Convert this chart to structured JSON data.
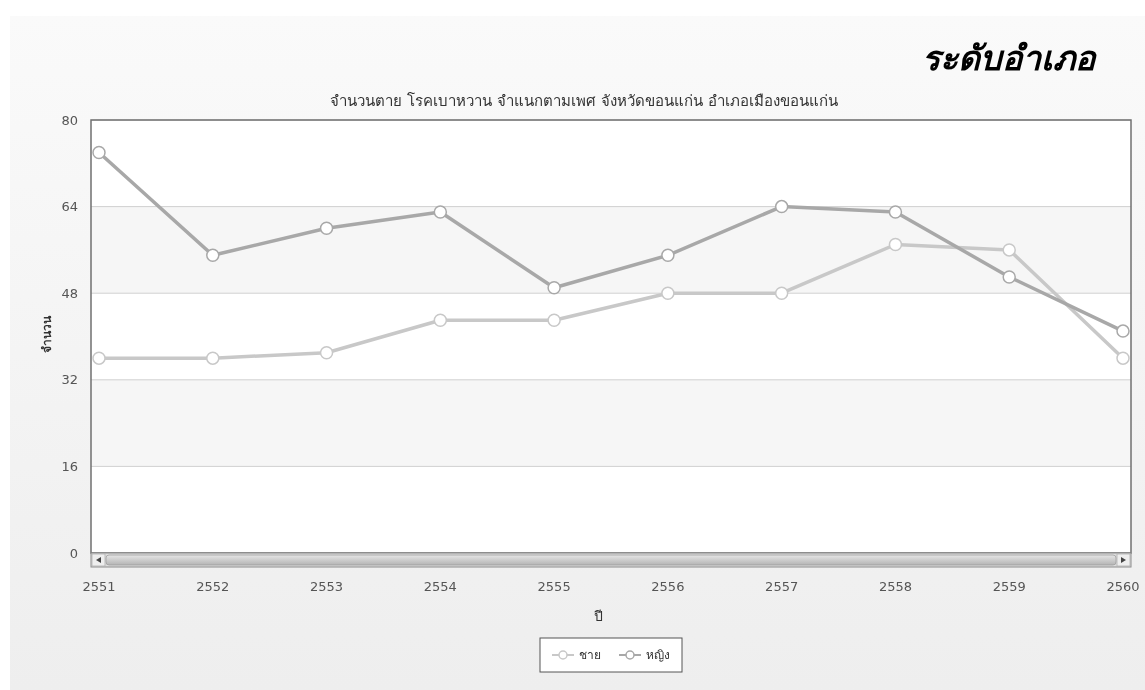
{
  "chart_data": {
    "type": "line",
    "title": "จำนวนตาย โรคเบาหวาน จำแนกตามเพศ จังหวัดขอนแก่น อำเภอเมืองขอนแก่น",
    "xlabel": "ปี",
    "ylabel": "จำนวน",
    "annotations": [
      "ระดับอำเภอ"
    ],
    "categories": [
      "2551",
      "2552",
      "2553",
      "2554",
      "2555",
      "2556",
      "2557",
      "2558",
      "2559",
      "2560"
    ],
    "series": [
      {
        "name": "ชาย",
        "color": "#c8c8c8",
        "values": [
          36,
          36,
          37,
          43,
          43,
          48,
          48,
          57,
          56,
          36
        ]
      },
      {
        "name": "หญิง",
        "color": "#a8a8a8",
        "values": [
          74,
          55,
          60,
          63,
          49,
          55,
          64,
          63,
          51,
          41
        ]
      }
    ],
    "ylim": [
      0,
      80
    ],
    "yticks": [
      0,
      16,
      32,
      48,
      64,
      80
    ],
    "grid": "y",
    "legend": "bottom",
    "marker": "circle",
    "line_style": "solid"
  }
}
